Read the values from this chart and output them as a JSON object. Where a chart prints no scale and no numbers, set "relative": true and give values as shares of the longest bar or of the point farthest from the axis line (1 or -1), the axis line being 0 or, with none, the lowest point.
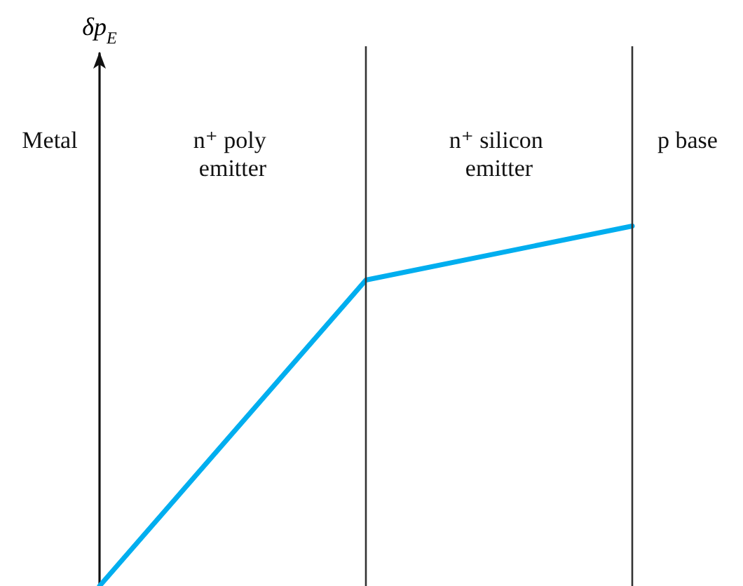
{
  "chart_data": {
    "type": "line",
    "relative": true,
    "categories": [
      null,
      null,
      null
    ],
    "values": [
      0,
      0.85,
      1
    ],
    "color": "#00aeef",
    "marker": "none",
    "tick_labels": false,
    "annotations": [
      "δp$_{E}$",
      "Metal",
      "n⁺ poly emitter",
      "n⁺ silicon emitter",
      "p base"
    ]
  }
}
